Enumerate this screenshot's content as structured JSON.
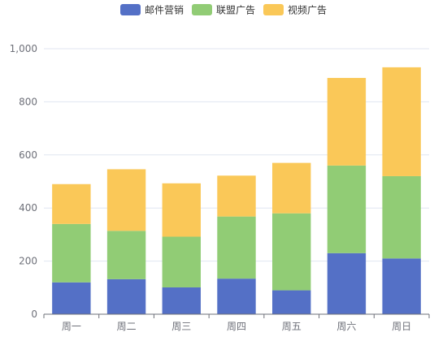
{
  "chart_data": {
    "type": "bar",
    "stacked": true,
    "categories": [
      "周一",
      "周二",
      "周三",
      "周四",
      "周五",
      "周六",
      "周日"
    ],
    "series": [
      {
        "name": "邮件营销",
        "color": "#5470c6",
        "values": [
          120,
          132,
          101,
          134,
          90,
          230,
          210
        ]
      },
      {
        "name": "联盟广告",
        "color": "#91cc75",
        "values": [
          220,
          182,
          191,
          234,
          290,
          330,
          310
        ]
      },
      {
        "name": "视频广告",
        "color": "#fac858",
        "values": [
          150,
          232,
          201,
          154,
          190,
          330,
          410
        ]
      }
    ],
    "yticks": [
      "0",
      "200",
      "400",
      "600",
      "800",
      "1,000"
    ],
    "ylim": [
      0,
      1000
    ],
    "grid": true,
    "legend": "top-center"
  }
}
